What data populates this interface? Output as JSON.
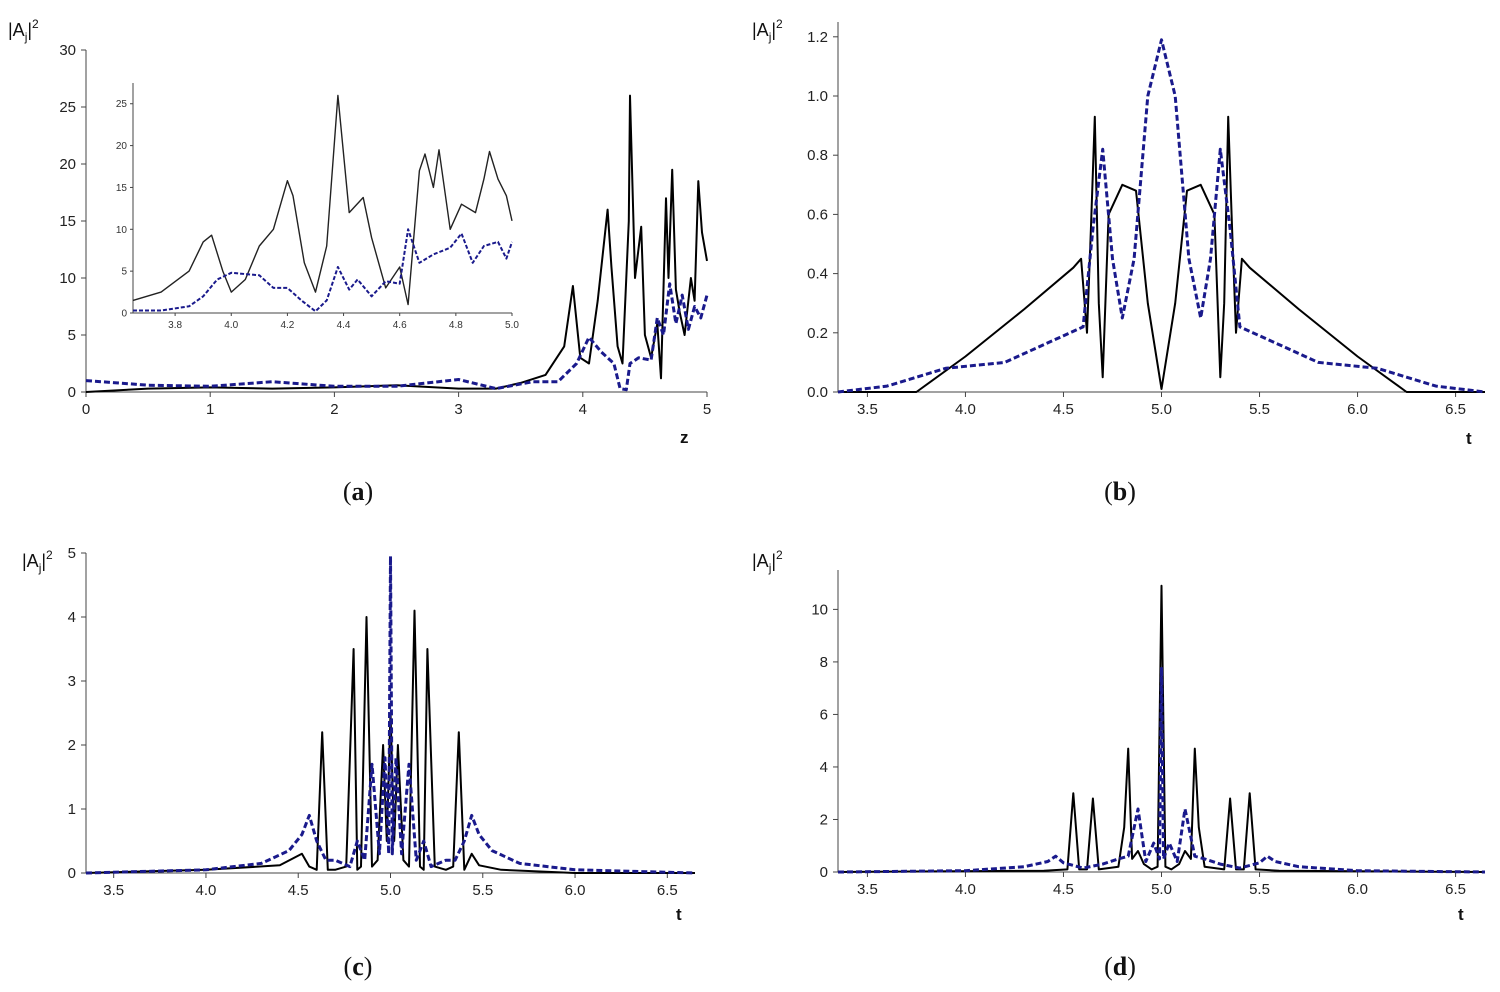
{
  "chart_data": [
    {
      "id": "a",
      "type": "line",
      "panel_label": "a",
      "ylabel_main": "|A",
      "ylabel_sub": "j",
      "ylabel_tail": "|",
      "ylabel_sup": "2",
      "xlabel": "z",
      "xlim": [
        0,
        5
      ],
      "ylim": [
        0,
        30
      ],
      "xticks": [
        0,
        1,
        2,
        3,
        4,
        5
      ],
      "yticks": [
        0,
        5,
        10,
        15,
        20,
        25,
        30
      ],
      "series": [
        {
          "name": "solid",
          "style": "solid",
          "x": [
            0,
            0.5,
            1,
            1.5,
            2,
            2.5,
            3,
            3.3,
            3.5,
            3.7,
            3.85,
            3.92,
            3.98,
            4.05,
            4.12,
            4.2,
            4.23,
            4.28,
            4.32,
            4.37,
            4.38,
            4.42,
            4.47,
            4.5,
            4.55,
            4.6,
            4.63,
            4.67,
            4.69,
            4.72,
            4.75,
            4.78,
            4.82,
            4.87,
            4.9,
            4.93,
            4.96,
            5
          ],
          "y": [
            0,
            0.3,
            0.4,
            0.3,
            0.4,
            0.6,
            0.3,
            0.3,
            0.8,
            1.5,
            4,
            9.3,
            3,
            2.5,
            8,
            16,
            11,
            4,
            2.5,
            15,
            26,
            10,
            14.5,
            5,
            3,
            6,
            1.2,
            17,
            10,
            19.5,
            9,
            7,
            5,
            10,
            8,
            18.5,
            14,
            11.5
          ]
        },
        {
          "name": "dashed",
          "style": "dashed",
          "x": [
            0,
            0.5,
            1,
            1.5,
            2,
            2.5,
            3,
            3.3,
            3.6,
            3.8,
            3.95,
            4.05,
            4.15,
            4.25,
            4.3,
            4.35,
            4.38,
            4.45,
            4.55,
            4.6,
            4.65,
            4.7,
            4.75,
            4.8,
            4.85,
            4.9,
            4.95,
            5
          ],
          "y": [
            1,
            0.6,
            0.5,
            0.9,
            0.5,
            0.5,
            1.1,
            0.3,
            0.9,
            0.9,
            2.5,
            4.8,
            3.5,
            2.5,
            0.3,
            0.2,
            2.5,
            3,
            2.8,
            6.5,
            5,
            9.5,
            6,
            8.5,
            5.5,
            7.5,
            6.5,
            8.5
          ]
        }
      ],
      "inset": {
        "xlim": [
          3.65,
          5.0
        ],
        "ylim": [
          0,
          27
        ],
        "xticks": [
          3.8,
          4.0,
          4.2,
          4.4,
          4.6,
          4.8,
          5.0
        ],
        "xtick_labels": [
          "3.8",
          "4.0",
          "4.2",
          "4.4",
          "4.6",
          "4.8",
          "5.0"
        ],
        "yticks": [
          0,
          5,
          10,
          15,
          20,
          25
        ],
        "series": [
          {
            "name": "solid",
            "style": "solid",
            "x": [
              3.65,
              3.75,
              3.85,
              3.9,
              3.93,
              3.97,
              4.0,
              4.05,
              4.1,
              4.15,
              4.2,
              4.22,
              4.26,
              4.3,
              4.34,
              4.38,
              4.42,
              4.47,
              4.5,
              4.55,
              4.6,
              4.63,
              4.67,
              4.69,
              4.72,
              4.74,
              4.78,
              4.82,
              4.87,
              4.9,
              4.92,
              4.95,
              4.98,
              5.0
            ],
            "y": [
              1.5,
              2.5,
              5,
              8.5,
              9.3,
              5,
              2.5,
              4,
              8,
              10,
              15.8,
              14,
              6,
              2.5,
              8,
              26,
              12,
              13.8,
              9,
              3,
              5.5,
              1,
              17,
              19,
              15,
              19.5,
              10,
              13,
              12,
              16,
              19.3,
              16,
              14,
              11
            ]
          },
          {
            "name": "dashed",
            "style": "dashed",
            "x": [
              3.65,
              3.75,
              3.85,
              3.9,
              3.95,
              4.0,
              4.1,
              4.15,
              4.2,
              4.25,
              4.3,
              4.34,
              4.38,
              4.42,
              4.45,
              4.5,
              4.55,
              4.6,
              4.63,
              4.67,
              4.72,
              4.78,
              4.82,
              4.86,
              4.9,
              4.95,
              4.98,
              5.0
            ],
            "y": [
              0.3,
              0.3,
              0.8,
              2,
              4,
              4.8,
              4.5,
              3,
              3,
              1.5,
              0.2,
              1.5,
              5.5,
              2.8,
              4,
              2,
              3.8,
              3.5,
              10,
              6,
              7,
              7.8,
              9.5,
              6,
              8,
              8.5,
              6.5,
              8.5
            ]
          }
        ]
      }
    },
    {
      "id": "b",
      "type": "line",
      "panel_label": "b",
      "ylabel_main": "|A",
      "ylabel_sub": "j",
      "ylabel_tail": "|",
      "ylabel_sup": "2",
      "xlabel": "t",
      "xlim": [
        3.35,
        6.65
      ],
      "ylim": [
        0,
        1.25
      ],
      "xticks": [
        3.5,
        4.0,
        4.5,
        5.0,
        5.5,
        6.0,
        6.5
      ],
      "xtick_labels": [
        "3.5",
        "4.0",
        "4.5",
        "5.0",
        "5.5",
        "6.0",
        "6.5"
      ],
      "yticks": [
        0,
        0.2,
        0.4,
        0.6,
        0.8,
        1.0,
        1.2
      ],
      "ytick_labels": [
        "0.0",
        "0.2",
        "0.4",
        "0.6",
        "0.8",
        "1.0",
        "1.2"
      ],
      "series": [
        {
          "name": "solid",
          "style": "solid",
          "x": [
            3.35,
            3.75,
            4.0,
            4.3,
            4.55,
            4.59,
            4.62,
            4.64,
            4.66,
            4.68,
            4.7,
            4.73,
            4.8,
            4.87,
            4.93,
            5.0,
            5.07,
            5.13,
            5.2,
            5.27,
            5.3,
            5.32,
            5.34,
            5.36,
            5.38,
            5.41,
            5.45,
            5.7,
            6.0,
            6.25,
            6.65
          ],
          "y": [
            0,
            0,
            0.12,
            0.28,
            0.42,
            0.45,
            0.2,
            0.55,
            0.93,
            0.3,
            0.05,
            0.6,
            0.7,
            0.68,
            0.3,
            0.01,
            0.3,
            0.68,
            0.7,
            0.6,
            0.05,
            0.3,
            0.93,
            0.55,
            0.2,
            0.45,
            0.42,
            0.28,
            0.12,
            0,
            0
          ]
        },
        {
          "name": "dashed",
          "style": "dashed",
          "x": [
            3.35,
            3.6,
            3.9,
            4.2,
            4.4,
            4.6,
            4.65,
            4.7,
            4.75,
            4.8,
            4.86,
            4.93,
            5.0,
            5.07,
            5.14,
            5.2,
            5.25,
            5.3,
            5.35,
            5.4,
            5.6,
            5.8,
            6.1,
            6.4,
            6.65
          ],
          "y": [
            0,
            0.02,
            0.08,
            0.1,
            0.16,
            0.22,
            0.55,
            0.82,
            0.45,
            0.25,
            0.45,
            1.0,
            1.19,
            1.0,
            0.45,
            0.25,
            0.45,
            0.82,
            0.55,
            0.22,
            0.16,
            0.1,
            0.08,
            0.02,
            0
          ]
        }
      ]
    },
    {
      "id": "c",
      "type": "line",
      "panel_label": "c",
      "ylabel_main": "|A",
      "ylabel_sub": "j",
      "ylabel_tail": "|",
      "ylabel_sup": "2",
      "xlabel": "t",
      "xlim": [
        3.35,
        6.65
      ],
      "ylim": [
        0,
        5
      ],
      "xticks": [
        3.5,
        4.0,
        4.5,
        5.0,
        5.5,
        6.0,
        6.5
      ],
      "xtick_labels": [
        "3.5",
        "4.0",
        "4.5",
        "5.0",
        "5.5",
        "6.0",
        "6.5"
      ],
      "yticks": [
        0,
        1,
        2,
        3,
        4,
        5
      ],
      "series": [
        {
          "name": "solid",
          "style": "solid",
          "x": [
            3.35,
            4.0,
            4.4,
            4.52,
            4.56,
            4.6,
            4.63,
            4.66,
            4.7,
            4.76,
            4.8,
            4.82,
            4.84,
            4.87,
            4.9,
            4.93,
            4.96,
            4.98,
            5.0,
            5.02,
            5.04,
            5.07,
            5.1,
            5.13,
            5.16,
            5.18,
            5.2,
            5.24,
            5.3,
            5.34,
            5.37,
            5.4,
            5.44,
            5.48,
            5.6,
            6.0,
            6.65
          ],
          "y": [
            0,
            0.05,
            0.12,
            0.3,
            0.1,
            0.05,
            2.2,
            0.05,
            0.05,
            0.1,
            3.5,
            0.05,
            0.1,
            4,
            0.1,
            0.2,
            2,
            0.5,
            2.5,
            0.5,
            2,
            0.2,
            0.1,
            4.1,
            0.1,
            0.05,
            3.5,
            0.1,
            0.05,
            0.1,
            2.2,
            0.05,
            0.3,
            0.12,
            0.05,
            0,
            0
          ]
        },
        {
          "name": "dashed",
          "style": "dashed",
          "x": [
            3.35,
            4.0,
            4.3,
            4.45,
            4.52,
            4.56,
            4.6,
            4.65,
            4.7,
            4.78,
            4.82,
            4.86,
            4.9,
            4.94,
            4.97,
            4.99,
            5.0,
            5.01,
            5.03,
            5.06,
            5.1,
            5.14,
            5.18,
            5.22,
            5.3,
            5.35,
            5.4,
            5.44,
            5.48,
            5.55,
            5.7,
            6.0,
            6.65
          ],
          "y": [
            0,
            0.05,
            0.15,
            0.35,
            0.6,
            0.9,
            0.5,
            0.2,
            0.2,
            0.1,
            0.5,
            0.2,
            1.7,
            0.3,
            1.8,
            0.3,
            4.95,
            0.3,
            1.8,
            0.3,
            1.7,
            0.2,
            0.5,
            0.1,
            0.2,
            0.2,
            0.5,
            0.9,
            0.6,
            0.35,
            0.15,
            0.05,
            0
          ]
        }
      ]
    },
    {
      "id": "d",
      "type": "line",
      "panel_label": "d",
      "ylabel_main": "|A",
      "ylabel_sub": "j",
      "ylabel_tail": "|",
      "ylabel_sup": "2",
      "xlabel": "t",
      "xlim": [
        3.35,
        6.65
      ],
      "ylim": [
        0,
        11.5
      ],
      "xticks": [
        3.5,
        4.0,
        4.5,
        5.0,
        5.5,
        6.0,
        6.5
      ],
      "xtick_labels": [
        "3.5",
        "4.0",
        "4.5",
        "5.0",
        "5.5",
        "6.0",
        "6.5"
      ],
      "yticks": [
        0,
        2,
        4,
        6,
        8,
        10
      ],
      "series": [
        {
          "name": "solid",
          "style": "solid",
          "x": [
            3.35,
            4.4,
            4.52,
            4.55,
            4.58,
            4.62,
            4.65,
            4.68,
            4.78,
            4.81,
            4.83,
            4.85,
            4.88,
            4.91,
            4.95,
            4.98,
            5.0,
            5.02,
            5.05,
            5.09,
            5.12,
            5.15,
            5.17,
            5.19,
            5.22,
            5.32,
            5.35,
            5.38,
            5.42,
            5.45,
            5.48,
            5.6,
            6.65
          ],
          "y": [
            0,
            0.05,
            0.1,
            3,
            0.1,
            0.1,
            2.8,
            0.1,
            0.2,
            1.7,
            4.7,
            0.5,
            0.8,
            0.3,
            0.1,
            0.2,
            10.9,
            0.2,
            0.1,
            0.3,
            0.8,
            0.5,
            4.7,
            1.7,
            0.2,
            0.1,
            2.8,
            0.1,
            0.1,
            3,
            0.1,
            0.05,
            0
          ]
        },
        {
          "name": "dashed",
          "style": "dashed",
          "x": [
            3.35,
            4.0,
            4.3,
            4.42,
            4.46,
            4.5,
            4.6,
            4.7,
            4.78,
            4.83,
            4.88,
            4.92,
            4.96,
            4.99,
            5.0,
            5.01,
            5.04,
            5.08,
            5.12,
            5.17,
            5.22,
            5.3,
            5.4,
            5.5,
            5.54,
            5.58,
            5.7,
            6.0,
            6.65
          ],
          "y": [
            0,
            0.05,
            0.2,
            0.4,
            0.6,
            0.35,
            0.15,
            0.3,
            0.5,
            0.6,
            2.4,
            0.4,
            1.1,
            0.5,
            7.8,
            0.5,
            1.1,
            0.4,
            2.4,
            0.6,
            0.5,
            0.3,
            0.15,
            0.35,
            0.6,
            0.4,
            0.2,
            0.05,
            0
          ]
        }
      ]
    }
  ]
}
